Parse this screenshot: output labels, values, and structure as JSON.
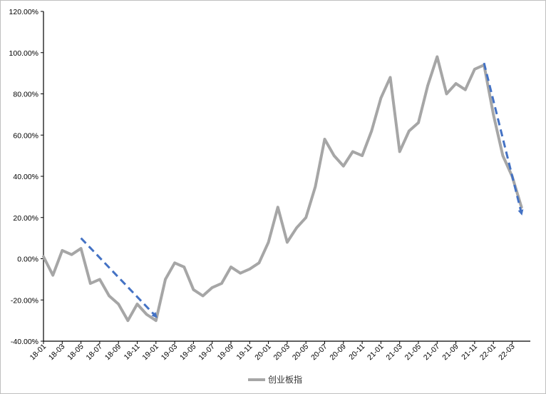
{
  "chart_data": {
    "type": "line",
    "title": "",
    "xlabel": "",
    "ylabel": "",
    "ylim": [
      -40,
      120
    ],
    "yticks": [
      "-40.00%",
      "-20.00%",
      "0.00%",
      "20.00%",
      "40.00%",
      "60.00%",
      "80.00%",
      "100.00%",
      "120.00%"
    ],
    "xticks": [
      "18-01",
      "18-03",
      "18-05",
      "18-07",
      "18-09",
      "18-11",
      "19-01",
      "19-03",
      "19-05",
      "19-07",
      "19-09",
      "19-11",
      "20-01",
      "20-03",
      "20-05",
      "20-07",
      "20-09",
      "20-11",
      "21-01",
      "21-03",
      "21-05",
      "21-07",
      "21-09",
      "21-11",
      "22-01",
      "22-03"
    ],
    "grid": false,
    "legend": {
      "position": "bottom",
      "entries": [
        "创业板指"
      ]
    },
    "colors": {
      "series": "#a6a6a6",
      "trend": "#4472c4",
      "axis": "#000000"
    },
    "series": [
      {
        "name": "创业板指",
        "x": [
          "18-01",
          "18-02",
          "18-03",
          "18-04",
          "18-05",
          "18-06",
          "18-07",
          "18-08",
          "18-09",
          "18-10",
          "18-11",
          "18-12",
          "19-01",
          "19-02",
          "19-03",
          "19-04",
          "19-05",
          "19-06",
          "19-07",
          "19-08",
          "19-09",
          "19-10",
          "19-11",
          "19-12",
          "20-01",
          "20-02",
          "20-03",
          "20-04",
          "20-05",
          "20-06",
          "20-07",
          "20-08",
          "20-09",
          "20-10",
          "20-11",
          "20-12",
          "21-01",
          "21-02",
          "21-03",
          "21-04",
          "21-05",
          "21-06",
          "21-07",
          "21-08",
          "21-09",
          "21-10",
          "21-11",
          "21-12",
          "22-01",
          "22-02",
          "22-03",
          "22-04"
        ],
        "values": [
          1,
          -8,
          4,
          2,
          5,
          -12,
          -10,
          -18,
          -22,
          -30,
          -22,
          -27,
          -30,
          -10,
          -2,
          -4,
          -15,
          -18,
          -14,
          -12,
          -4,
          -7,
          -5,
          -2,
          8,
          25,
          8,
          15,
          20,
          35,
          58,
          50,
          45,
          52,
          50,
          62,
          78,
          88,
          52,
          62,
          66,
          84,
          98,
          80,
          85,
          82,
          92,
          94,
          70,
          50,
          40,
          25
        ]
      }
    ],
    "trend_arrows": [
      {
        "from": [
          "18-05",
          10
        ],
        "to": [
          "19-01",
          -28
        ]
      },
      {
        "from": [
          "21-12",
          95
        ],
        "to": [
          "22-04",
          22
        ]
      }
    ]
  }
}
